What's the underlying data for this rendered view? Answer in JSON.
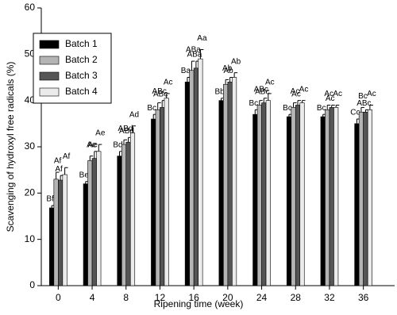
{
  "chart_data": {
    "type": "bar",
    "x_label": "Ripening time (week)",
    "y_label": "Scavenging of hydroxyl free radicals (%)",
    "categories": [
      "0",
      "4",
      "8",
      "12",
      "16",
      "20",
      "24",
      "28",
      "32",
      "36"
    ],
    "ylim": [
      0,
      60
    ],
    "yticks": [
      0,
      10,
      20,
      30,
      40,
      50,
      60
    ],
    "legend": "upper left",
    "series": [
      {
        "name": "Batch 1",
        "color": "#000000",
        "values": [
          16.8,
          22,
          28,
          36,
          44,
          40,
          37,
          36.5,
          36.5,
          35
        ],
        "errors": [
          0.5,
          0.5,
          1,
          1,
          1,
          0.5,
          1,
          0.5,
          0.5,
          1
        ],
        "labels": [
          "Bf",
          "Be",
          "Bd",
          "Bc",
          "Ba",
          "Bb",
          "Bc",
          "Bc",
          "Bc",
          "Cc"
        ]
      },
      {
        "name": "Batch 2",
        "color": "#b4b4b4",
        "values": [
          23,
          27,
          30.5,
          38,
          46.5,
          43.5,
          39,
          38.5,
          38,
          37.5
        ],
        "errors": [
          1.5,
          1,
          1,
          1.5,
          2,
          1,
          1,
          1,
          1,
          1
        ],
        "labels": [
          "Af",
          "Ae",
          "ABd",
          "ABc",
          "ABa",
          "Ab",
          "ABc",
          "Ac",
          "Ac",
          "Bc"
        ]
      },
      {
        "name": "Batch 3",
        "color": "#555555",
        "values": [
          22.8,
          27.5,
          31,
          38.5,
          47,
          44,
          39.5,
          39,
          38.5,
          37.5
        ],
        "errors": [
          1,
          1.5,
          1,
          1.5,
          1.5,
          1,
          1,
          1,
          0.5,
          0.5
        ],
        "labels": [
          "Af",
          "Ae",
          "ABd",
          "ABc",
          "ABa",
          "Ab",
          "ABc",
          "Ac",
          "Ac",
          "ABc"
        ]
      },
      {
        "name": "Batch 4",
        "color": "#ebebeb",
        "values": [
          24,
          29,
          33,
          40.5,
          49,
          45,
          40,
          39.5,
          38.5,
          38
        ],
        "errors": [
          1.5,
          1.5,
          1.5,
          1,
          2,
          1,
          1.5,
          0.5,
          0.5,
          1
        ],
        "labels": [
          "Af",
          "Ae",
          "Ad",
          "Ac",
          "Aa",
          "Ab",
          "Ac",
          "Ac",
          "Ac",
          "Ac"
        ]
      }
    ]
  }
}
